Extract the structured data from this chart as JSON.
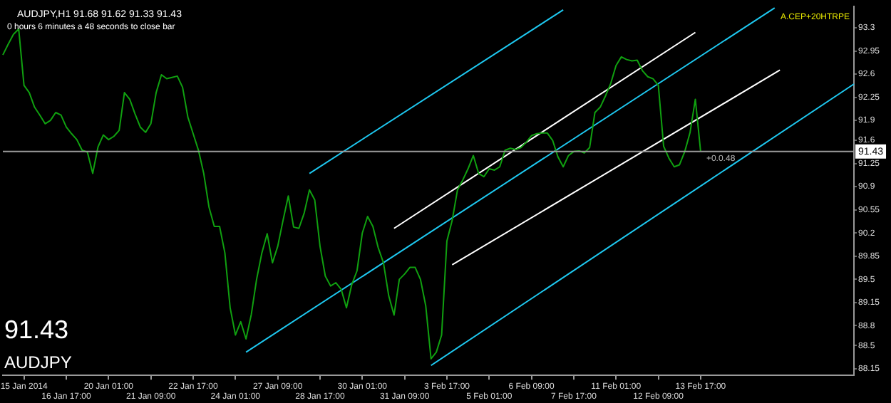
{
  "chart_data": {
    "type": "line",
    "title": "AUDJPY,H1 91.68 91.62 91.33 91.43",
    "subtitle": "0 hours 6 minutes a 48 seconds to close bar",
    "categories": [
      null,
      null,
      null,
      null,
      "15 Jan 2014",
      null,
      null,
      null,
      null,
      null,
      null,
      null,
      "16 Jan 17:00",
      null,
      null,
      null,
      null,
      null,
      null,
      null,
      "20 Jan 01:00",
      null,
      null,
      null,
      null,
      null,
      null,
      null,
      "21 Jan 09:00",
      null,
      null,
      null,
      null,
      null,
      null,
      null,
      "22 Jan 17:00",
      null,
      null,
      null,
      null,
      null,
      null,
      null,
      "24 Jan 01:00",
      null,
      null,
      null,
      null,
      null,
      null,
      null,
      "27 Jan 09:00",
      null,
      null,
      null,
      null,
      null,
      null,
      null,
      "28 Jan 17:00",
      null,
      null,
      null,
      null,
      null,
      null,
      null,
      "30 Jan 01:00",
      null,
      null,
      null,
      null,
      null,
      null,
      null,
      "31 Jan 09:00",
      null,
      null,
      null,
      null,
      null,
      null,
      null,
      "3 Feb 17:00",
      null,
      null,
      null,
      null,
      null,
      null,
      null,
      "5 Feb 01:00",
      null,
      null,
      null,
      null,
      null,
      null,
      null,
      "6 Feb 09:00",
      null,
      null,
      null,
      null,
      null,
      null,
      null,
      "7 Feb 17:00",
      null,
      null,
      null,
      null,
      null,
      null,
      null,
      "11 Feb 01:00",
      null,
      null,
      null,
      null,
      null,
      null,
      null,
      "12 Feb 09:00",
      null,
      null,
      null,
      null,
      null,
      null,
      null,
      "13 Feb 17:00",
      null,
      null,
      null,
      null,
      null,
      null,
      null,
      null,
      null,
      null,
      null,
      null,
      null,
      null,
      null,
      null,
      null,
      null,
      null,
      null,
      null,
      null,
      null,
      null,
      null,
      null,
      null,
      null,
      null
    ],
    "ylim": [
      88.05,
      93.62
    ],
    "yticks": [
      88.15,
      88.5,
      88.8,
      89.15,
      89.5,
      89.85,
      90.2,
      90.55,
      90.9,
      91.25,
      91.6,
      91.9,
      92.25,
      92.6,
      92.95,
      93.3
    ],
    "grid": false,
    "legend": false,
    "series": [
      {
        "type": "line",
        "color": "#10a010",
        "values": [
          92.89,
          93.05,
          93.2,
          93.28,
          92.43,
          92.32,
          92.1,
          91.98,
          91.85,
          91.9,
          92.02,
          91.98,
          91.8,
          91.7,
          91.61,
          91.45,
          91.42,
          91.1,
          91.5,
          91.68,
          91.61,
          91.66,
          91.75,
          92.32,
          92.22,
          92.0,
          91.8,
          91.72,
          91.85,
          92.32,
          92.59,
          92.53,
          92.55,
          92.57,
          92.4,
          91.95,
          91.7,
          91.45,
          91.1,
          90.59,
          90.3,
          90.3,
          89.9,
          89.07,
          88.66,
          88.86,
          88.6,
          88.97,
          89.5,
          89.9,
          90.19,
          89.75,
          90.0,
          90.39,
          90.76,
          90.29,
          90.27,
          90.5,
          90.85,
          90.7,
          90.0,
          89.55,
          89.4,
          89.45,
          89.35,
          89.07,
          89.42,
          89.63,
          90.2,
          90.45,
          90.3,
          89.98,
          89.75,
          89.25,
          88.96,
          89.5,
          89.58,
          89.68,
          89.68,
          89.5,
          89.1,
          88.3,
          88.4,
          88.66,
          90.08,
          90.39,
          90.85,
          91.0,
          91.17,
          91.37,
          91.1,
          91.05,
          91.17,
          91.15,
          91.2,
          91.45,
          91.48,
          91.46,
          91.49,
          91.57,
          91.67,
          91.7,
          91.71,
          91.71,
          91.6,
          91.35,
          91.2,
          91.37,
          91.43,
          91.44,
          91.41,
          91.49,
          92.02,
          92.1,
          92.27,
          92.46,
          92.73,
          92.86,
          92.82,
          92.8,
          92.81,
          92.65,
          92.56,
          92.53,
          92.43,
          91.51,
          91.33,
          91.2,
          91.23,
          91.43,
          91.72,
          92.22,
          91.43,
          null,
          null,
          null,
          null,
          null,
          null,
          null,
          null,
          null,
          null,
          null,
          null,
          null,
          null,
          null,
          null,
          null,
          null,
          null,
          null,
          null,
          null,
          null,
          null,
          null,
          null,
          null,
          null,
          null
        ]
      },
      {
        "type": "line",
        "color": "#1ec8f0",
        "values": [
          null,
          null,
          null,
          null,
          null,
          null,
          null,
          null,
          null,
          null,
          null,
          null,
          null,
          null,
          null,
          null,
          null,
          null,
          null,
          null,
          null,
          null,
          null,
          null,
          null,
          null,
          null,
          null,
          null,
          null,
          null,
          null,
          null,
          null,
          null,
          null,
          null,
          null,
          null,
          null,
          null,
          null,
          null,
          null,
          null,
          null,
          null,
          null,
          null,
          null,
          null,
          null,
          null,
          null,
          null,
          null,
          null,
          null,
          91.1,
          null,
          null,
          null,
          null,
          null,
          null,
          null,
          null,
          null,
          null,
          null,
          null,
          null,
          null,
          null,
          null,
          null,
          null,
          null,
          null,
          null,
          null,
          null,
          null,
          null,
          null,
          null,
          null,
          null,
          null,
          null,
          null,
          null,
          null,
          null,
          null,
          null,
          null,
          null,
          null,
          null,
          null,
          null,
          null,
          null,
          null,
          null,
          93.57,
          null,
          null,
          null,
          null,
          null,
          null,
          null,
          null,
          null,
          null,
          null,
          null,
          null,
          null,
          null,
          null,
          null,
          null,
          null,
          null,
          null,
          null,
          null,
          null,
          null,
          null,
          null,
          null,
          null,
          null,
          null,
          null,
          null,
          null,
          null,
          null,
          null,
          null,
          null,
          null,
          null,
          null,
          null,
          null,
          null,
          null,
          null,
          null,
          null,
          null,
          null,
          null,
          null,
          null,
          null
        ]
      },
      {
        "type": "line",
        "color": "#1ec8f0",
        "values": [
          null,
          null,
          null,
          null,
          null,
          null,
          null,
          null,
          null,
          null,
          null,
          null,
          null,
          null,
          null,
          null,
          null,
          null,
          null,
          null,
          null,
          null,
          null,
          null,
          null,
          null,
          null,
          null,
          null,
          null,
          null,
          null,
          null,
          null,
          null,
          null,
          null,
          null,
          null,
          null,
          null,
          null,
          null,
          null,
          null,
          null,
          88.4,
          null,
          null,
          null,
          null,
          null,
          null,
          null,
          null,
          null,
          null,
          null,
          null,
          null,
          null,
          null,
          null,
          null,
          null,
          null,
          null,
          null,
          null,
          null,
          null,
          null,
          null,
          null,
          null,
          null,
          null,
          null,
          null,
          null,
          null,
          null,
          null,
          null,
          null,
          null,
          null,
          null,
          null,
          null,
          null,
          null,
          null,
          null,
          null,
          null,
          null,
          null,
          null,
          null,
          null,
          null,
          null,
          null,
          null,
          null,
          null,
          null,
          null,
          null,
          null,
          null,
          null,
          null,
          null,
          null,
          null,
          null,
          null,
          null,
          null,
          null,
          null,
          null,
          null,
          null,
          null,
          null,
          null,
          null,
          null,
          null,
          null,
          null,
          null,
          null,
          null,
          null,
          null,
          null,
          null,
          null,
          null,
          null,
          null,
          null,
          93.6,
          null,
          null,
          null,
          null,
          null,
          null,
          null,
          null,
          null,
          null,
          null,
          null,
          null,
          null,
          null
        ]
      },
      {
        "type": "line",
        "color": "#1ec8f0",
        "values": [
          null,
          null,
          null,
          null,
          null,
          null,
          null,
          null,
          null,
          null,
          null,
          null,
          null,
          null,
          null,
          null,
          null,
          null,
          null,
          null,
          null,
          null,
          null,
          null,
          null,
          null,
          null,
          null,
          null,
          null,
          null,
          null,
          null,
          null,
          null,
          null,
          null,
          null,
          null,
          null,
          null,
          null,
          null,
          null,
          null,
          null,
          null,
          null,
          null,
          null,
          null,
          null,
          null,
          null,
          null,
          null,
          null,
          null,
          null,
          null,
          null,
          null,
          null,
          null,
          null,
          null,
          null,
          null,
          null,
          null,
          null,
          null,
          null,
          null,
          null,
          null,
          null,
          null,
          null,
          null,
          null,
          88.2,
          null,
          null,
          null,
          null,
          null,
          null,
          null,
          null,
          null,
          null,
          null,
          null,
          null,
          null,
          null,
          null,
          null,
          null,
          null,
          null,
          null,
          null,
          null,
          null,
          null,
          null,
          null,
          null,
          null,
          null,
          null,
          null,
          null,
          null,
          null,
          null,
          null,
          null,
          null,
          null,
          null,
          null,
          null,
          null,
          null,
          null,
          null,
          null,
          null,
          null,
          null,
          null,
          null,
          null,
          null,
          null,
          null,
          null,
          null,
          null,
          null,
          null,
          null,
          null,
          null,
          null,
          null,
          null,
          null,
          null,
          null,
          null,
          null,
          null,
          null,
          null,
          null,
          null,
          null,
          92.45
        ]
      },
      {
        "type": "line",
        "color": "#ffffff",
        "values": [
          null,
          null,
          null,
          null,
          null,
          null,
          null,
          null,
          null,
          null,
          null,
          null,
          null,
          null,
          null,
          null,
          null,
          null,
          null,
          null,
          null,
          null,
          null,
          null,
          null,
          null,
          null,
          null,
          null,
          null,
          null,
          null,
          null,
          null,
          null,
          null,
          null,
          null,
          null,
          null,
          null,
          null,
          null,
          null,
          null,
          null,
          null,
          null,
          null,
          null,
          null,
          null,
          null,
          null,
          null,
          null,
          null,
          null,
          null,
          null,
          null,
          null,
          null,
          null,
          null,
          null,
          null,
          null,
          null,
          null,
          null,
          null,
          null,
          null,
          90.27,
          null,
          null,
          null,
          null,
          null,
          null,
          null,
          null,
          null,
          null,
          null,
          null,
          null,
          null,
          null,
          null,
          null,
          null,
          null,
          null,
          null,
          null,
          null,
          null,
          null,
          null,
          null,
          null,
          null,
          null,
          null,
          null,
          null,
          null,
          null,
          null,
          null,
          null,
          null,
          null,
          null,
          null,
          null,
          null,
          null,
          null,
          null,
          null,
          null,
          null,
          null,
          null,
          null,
          null,
          null,
          null,
          93.23,
          null,
          null,
          null,
          null,
          null,
          null,
          null,
          null,
          null,
          null,
          null,
          null,
          null,
          null,
          null,
          null,
          null,
          null,
          null,
          null,
          null,
          null,
          null,
          null,
          null,
          null,
          null,
          null,
          null,
          null
        ]
      },
      {
        "type": "line",
        "color": "#ffffff",
        "values": [
          null,
          null,
          null,
          null,
          null,
          null,
          null,
          null,
          null,
          null,
          null,
          null,
          null,
          null,
          null,
          null,
          null,
          null,
          null,
          null,
          null,
          null,
          null,
          null,
          null,
          null,
          null,
          null,
          null,
          null,
          null,
          null,
          null,
          null,
          null,
          null,
          null,
          null,
          null,
          null,
          null,
          null,
          null,
          null,
          null,
          null,
          null,
          null,
          null,
          null,
          null,
          null,
          null,
          null,
          null,
          null,
          null,
          null,
          null,
          null,
          null,
          null,
          null,
          null,
          null,
          null,
          null,
          null,
          null,
          null,
          null,
          null,
          null,
          null,
          null,
          null,
          null,
          null,
          null,
          null,
          null,
          null,
          null,
          null,
          null,
          89.72,
          null,
          null,
          null,
          null,
          null,
          null,
          null,
          null,
          null,
          null,
          null,
          null,
          null,
          null,
          null,
          null,
          null,
          null,
          null,
          null,
          null,
          null,
          null,
          null,
          null,
          null,
          null,
          null,
          null,
          null,
          null,
          null,
          null,
          null,
          null,
          null,
          null,
          null,
          null,
          null,
          null,
          null,
          null,
          null,
          null,
          null,
          null,
          null,
          null,
          null,
          null,
          null,
          null,
          null,
          null,
          null,
          null,
          null,
          null,
          null,
          null,
          92.66,
          null,
          null,
          null,
          null,
          null,
          null,
          null,
          null,
          null,
          null,
          null,
          null,
          null,
          null
        ]
      }
    ],
    "ref_lines": [
      {
        "axis": "y",
        "value": 91.43,
        "label": "91.43",
        "color": "#9a9a9a"
      }
    ],
    "annotations": [
      "91.43",
      "AUDJPY",
      "A.CEP+20HTRPE",
      "+0.0.48"
    ]
  }
}
